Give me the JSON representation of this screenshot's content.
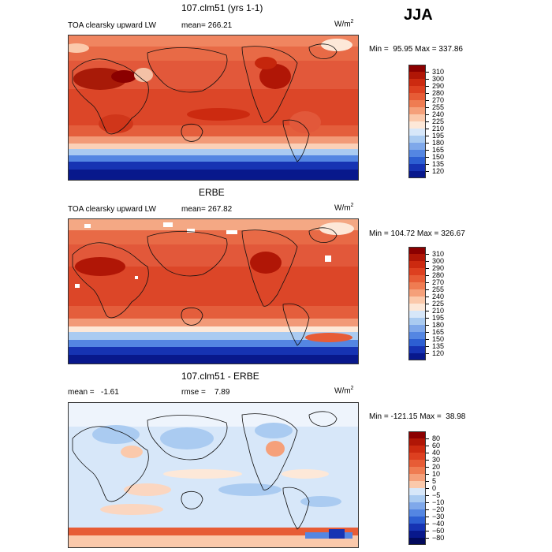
{
  "season": "JJA",
  "units_base": "W/m",
  "units_exp": "2",
  "panels": [
    {
      "title": "107.clm51 (yrs 1-1)",
      "variable": "TOA clearsky upward LW",
      "stat_label": "mean=",
      "stat_value": "266.21",
      "min_label": "Min =",
      "min_value": "95.95",
      "max_label": "Max =",
      "max_value": "337.86"
    },
    {
      "title": "ERBE",
      "variable": "TOA clearsky upward LW",
      "stat_label": "mean=",
      "stat_value": "267.82",
      "min_label": "Min =",
      "min_value": "104.72",
      "max_label": "Max =",
      "max_value": "326.67"
    },
    {
      "title": "107.clm51 - ERBE",
      "mean_label": "mean =",
      "mean_value": "-1.61",
      "rmse_label": "rmse =",
      "rmse_value": "7.89",
      "min_label": "Min =",
      "min_value": "-121.15",
      "max_label": "Max =",
      "max_value": "38.98"
    }
  ],
  "colorbars": {
    "field": {
      "labels": [
        "310",
        "300",
        "290",
        "280",
        "270",
        "255",
        "240",
        "225",
        "210",
        "195",
        "180",
        "165",
        "150",
        "135",
        "120"
      ],
      "colors": [
        "#8b0000",
        "#b01606",
        "#cc2a10",
        "#dd4020",
        "#e75c36",
        "#ef7c52",
        "#f5a07a",
        "#fbc9ab",
        "#fde8d8",
        "#d7e7f9",
        "#aacbf1",
        "#7fa8ea",
        "#5486e2",
        "#2d5fd2",
        "#1633b3",
        "#08188c"
      ]
    },
    "diff": {
      "labels": [
        "80",
        "60",
        "40",
        "30",
        "20",
        "10",
        "5",
        "0",
        "−5",
        "−10",
        "−20",
        "−30",
        "−40",
        "−60",
        "−80"
      ],
      "colors": [
        "#8b0000",
        "#b01606",
        "#cc2a10",
        "#dd4020",
        "#e75c36",
        "#ef7c52",
        "#f5a07a",
        "#fbc9ab",
        "#d7e7f9",
        "#aacbf1",
        "#7fa8ea",
        "#5486e2",
        "#2d5fd2",
        "#1633b3",
        "#08188c",
        "#020a5c"
      ]
    }
  },
  "legend_ticks_count": 15
}
